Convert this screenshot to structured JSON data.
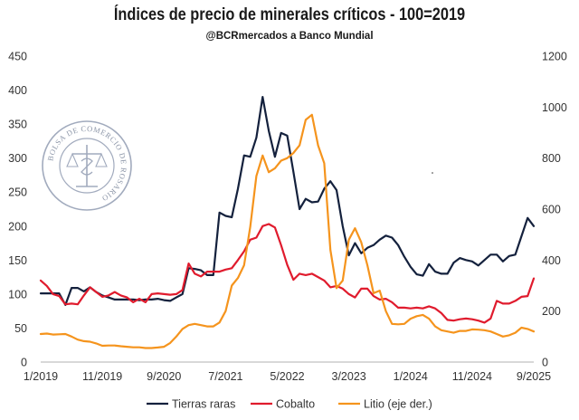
{
  "chart_data": {
    "type": "line",
    "title": "Índices de precio de minerales críticos - 100=2019",
    "subtitle": "@BCRmercados a Banco Mundial",
    "x_start": "2019-01",
    "x_end": "2025-09",
    "x_ticks": [
      "1/2019",
      "11/2019",
      "9/2020",
      "7/2021",
      "5/2022",
      "3/2023",
      "1/2024",
      "11/2024",
      "9/2025"
    ],
    "y_left": {
      "ticks": [
        0,
        50,
        100,
        150,
        200,
        250,
        300,
        350,
        400,
        450
      ],
      "range": [
        0,
        450
      ]
    },
    "y_right": {
      "ticks": [
        0,
        200,
        400,
        600,
        800,
        1000,
        1200
      ],
      "range": [
        0,
        1200
      ]
    },
    "series": [
      {
        "name": "Tierras raras",
        "axis": "left",
        "color": "#14213d",
        "points": [
          [
            "2019-01",
            101
          ],
          [
            "2019-02",
            101
          ],
          [
            "2019-03",
            101
          ],
          [
            "2019-04",
            101
          ],
          [
            "2019-05",
            84
          ],
          [
            "2019-06",
            109
          ],
          [
            "2019-07",
            109
          ],
          [
            "2019-08",
            104
          ],
          [
            "2019-09",
            110
          ],
          [
            "2019-10",
            103
          ],
          [
            "2019-11",
            98
          ],
          [
            "2019-12",
            95
          ],
          [
            "2020-01",
            92
          ],
          [
            "2020-02",
            92
          ],
          [
            "2020-03",
            92
          ],
          [
            "2020-04",
            92
          ],
          [
            "2020-05",
            91
          ],
          [
            "2020-06",
            92
          ],
          [
            "2020-07",
            92
          ],
          [
            "2020-08",
            93
          ],
          [
            "2020-09",
            91
          ],
          [
            "2020-10",
            90
          ],
          [
            "2020-11",
            95
          ],
          [
            "2020-12",
            100
          ],
          [
            "2021-01",
            138
          ],
          [
            "2021-02",
            137
          ],
          [
            "2021-03",
            135
          ],
          [
            "2021-04",
            128
          ],
          [
            "2021-05",
            128
          ],
          [
            "2021-06",
            220
          ],
          [
            "2021-07",
            215
          ],
          [
            "2021-08",
            213
          ],
          [
            "2021-09",
            255
          ],
          [
            "2021-10",
            304
          ],
          [
            "2021-11",
            302
          ],
          [
            "2021-12",
            330
          ],
          [
            "2022-01",
            390
          ],
          [
            "2022-02",
            340
          ],
          [
            "2022-03",
            302
          ],
          [
            "2022-04",
            337
          ],
          [
            "2022-05",
            333
          ],
          [
            "2022-06",
            280
          ],
          [
            "2022-07",
            225
          ],
          [
            "2022-08",
            240
          ],
          [
            "2022-09",
            235
          ],
          [
            "2022-10",
            236
          ],
          [
            "2022-11",
            255
          ],
          [
            "2022-12",
            266
          ],
          [
            "2023-01",
            253
          ],
          [
            "2023-02",
            200
          ],
          [
            "2023-03",
            157
          ],
          [
            "2023-04",
            175
          ],
          [
            "2023-05",
            160
          ],
          [
            "2023-06",
            168
          ],
          [
            "2023-07",
            172
          ],
          [
            "2023-08",
            180
          ],
          [
            "2023-09",
            186
          ],
          [
            "2023-10",
            183
          ],
          [
            "2023-11",
            172
          ],
          [
            "2023-12",
            155
          ],
          [
            "2024-01",
            140
          ],
          [
            "2024-02",
            129
          ],
          [
            "2024-03",
            127
          ],
          [
            "2024-04",
            144
          ],
          [
            "2024-05",
            133
          ],
          [
            "2024-06",
            130
          ],
          [
            "2024-07",
            130
          ],
          [
            "2024-08",
            146
          ],
          [
            "2024-09",
            153
          ],
          [
            "2024-10",
            150
          ],
          [
            "2024-11",
            148
          ],
          [
            "2024-12",
            142
          ],
          [
            "2025-01",
            150
          ],
          [
            "2025-02",
            158
          ],
          [
            "2025-03",
            158
          ],
          [
            "2025-04",
            148
          ],
          [
            "2025-05",
            156
          ],
          [
            "2025-06",
            158
          ],
          [
            "2025-07",
            185
          ],
          [
            "2025-08",
            212
          ],
          [
            "2025-09",
            200
          ]
        ]
      },
      {
        "name": "Cobalto",
        "axis": "left",
        "color": "#e01b2d",
        "points": [
          [
            "2019-01",
            120
          ],
          [
            "2019-02",
            112
          ],
          [
            "2019-03",
            100
          ],
          [
            "2019-04",
            97
          ],
          [
            "2019-05",
            85
          ],
          [
            "2019-06",
            86
          ],
          [
            "2019-07",
            85
          ],
          [
            "2019-08",
            98
          ],
          [
            "2019-09",
            110
          ],
          [
            "2019-10",
            103
          ],
          [
            "2019-11",
            96
          ],
          [
            "2019-12",
            98
          ],
          [
            "2020-01",
            103
          ],
          [
            "2020-02",
            98
          ],
          [
            "2020-03",
            95
          ],
          [
            "2020-04",
            88
          ],
          [
            "2020-05",
            93
          ],
          [
            "2020-06",
            88
          ],
          [
            "2020-07",
            100
          ],
          [
            "2020-08",
            101
          ],
          [
            "2020-09",
            100
          ],
          [
            "2020-10",
            99
          ],
          [
            "2020-11",
            100
          ],
          [
            "2020-12",
            106
          ],
          [
            "2021-01",
            145
          ],
          [
            "2021-02",
            130
          ],
          [
            "2021-03",
            126
          ],
          [
            "2021-04",
            133
          ],
          [
            "2021-05",
            133
          ],
          [
            "2021-06",
            133
          ],
          [
            "2021-07",
            136
          ],
          [
            "2021-08",
            138
          ],
          [
            "2021-09",
            150
          ],
          [
            "2021-10",
            163
          ],
          [
            "2021-11",
            180
          ],
          [
            "2021-12",
            183
          ],
          [
            "2022-01",
            200
          ],
          [
            "2022-02",
            203
          ],
          [
            "2022-03",
            198
          ],
          [
            "2022-04",
            172
          ],
          [
            "2022-05",
            143
          ],
          [
            "2022-06",
            121
          ],
          [
            "2022-07",
            130
          ],
          [
            "2022-08",
            128
          ],
          [
            "2022-09",
            130
          ],
          [
            "2022-10",
            125
          ],
          [
            "2022-11",
            120
          ],
          [
            "2022-12",
            110
          ],
          [
            "2023-01",
            112
          ],
          [
            "2023-02",
            108
          ],
          [
            "2023-03",
            100
          ],
          [
            "2023-04",
            95
          ],
          [
            "2023-05",
            108
          ],
          [
            "2023-06",
            108
          ],
          [
            "2023-07",
            97
          ],
          [
            "2023-08",
            92
          ],
          [
            "2023-09",
            93
          ],
          [
            "2023-10",
            88
          ],
          [
            "2023-11",
            80
          ],
          [
            "2023-12",
            80
          ],
          [
            "2024-01",
            79
          ],
          [
            "2024-02",
            80
          ],
          [
            "2024-03",
            79
          ],
          [
            "2024-04",
            82
          ],
          [
            "2024-05",
            79
          ],
          [
            "2024-06",
            72
          ],
          [
            "2024-07",
            62
          ],
          [
            "2024-08",
            61
          ],
          [
            "2024-09",
            63
          ],
          [
            "2024-10",
            64
          ],
          [
            "2024-11",
            63
          ],
          [
            "2024-12",
            61
          ],
          [
            "2025-01",
            58
          ],
          [
            "2025-02",
            64
          ],
          [
            "2025-03",
            90
          ],
          [
            "2025-04",
            86
          ],
          [
            "2025-05",
            86
          ],
          [
            "2025-06",
            90
          ],
          [
            "2025-07",
            96
          ],
          [
            "2025-08",
            97
          ],
          [
            "2025-09",
            123
          ]
        ]
      },
      {
        "name": "Litio (eje der.)",
        "axis": "right",
        "color": "#f5941d",
        "points": [
          [
            "2019-01",
            110
          ],
          [
            "2019-02",
            112
          ],
          [
            "2019-03",
            108
          ],
          [
            "2019-04",
            109
          ],
          [
            "2019-05",
            110
          ],
          [
            "2019-06",
            100
          ],
          [
            "2019-07",
            88
          ],
          [
            "2019-08",
            82
          ],
          [
            "2019-09",
            80
          ],
          [
            "2019-10",
            73
          ],
          [
            "2019-11",
            64
          ],
          [
            "2019-12",
            65
          ],
          [
            "2020-01",
            65
          ],
          [
            "2020-02",
            62
          ],
          [
            "2020-03",
            60
          ],
          [
            "2020-04",
            58
          ],
          [
            "2020-05",
            58
          ],
          [
            "2020-06",
            55
          ],
          [
            "2020-07",
            55
          ],
          [
            "2020-08",
            57
          ],
          [
            "2020-09",
            60
          ],
          [
            "2020-10",
            75
          ],
          [
            "2020-11",
            100
          ],
          [
            "2020-12",
            130
          ],
          [
            "2021-01",
            145
          ],
          [
            "2021-02",
            150
          ],
          [
            "2021-03",
            145
          ],
          [
            "2021-04",
            140
          ],
          [
            "2021-05",
            140
          ],
          [
            "2021-06",
            155
          ],
          [
            "2021-07",
            200
          ],
          [
            "2021-08",
            300
          ],
          [
            "2021-09",
            330
          ],
          [
            "2021-10",
            380
          ],
          [
            "2021-11",
            530
          ],
          [
            "2021-12",
            730
          ],
          [
            "2022-01",
            810
          ],
          [
            "2022-02",
            745
          ],
          [
            "2022-03",
            760
          ],
          [
            "2022-04",
            790
          ],
          [
            "2022-05",
            800
          ],
          [
            "2022-06",
            820
          ],
          [
            "2022-07",
            850
          ],
          [
            "2022-08",
            950
          ],
          [
            "2022-09",
            970
          ],
          [
            "2022-10",
            850
          ],
          [
            "2022-11",
            780
          ],
          [
            "2022-12",
            440
          ],
          [
            "2023-01",
            290
          ],
          [
            "2023-02",
            320
          ],
          [
            "2023-03",
            480
          ],
          [
            "2023-04",
            525
          ],
          [
            "2023-05",
            470
          ],
          [
            "2023-06",
            380
          ],
          [
            "2023-07",
            270
          ],
          [
            "2023-08",
            280
          ],
          [
            "2023-09",
            200
          ],
          [
            "2023-10",
            150
          ],
          [
            "2023-11",
            148
          ],
          [
            "2023-12",
            150
          ],
          [
            "2024-01",
            170
          ],
          [
            "2024-02",
            180
          ],
          [
            "2024-03",
            185
          ],
          [
            "2024-04",
            170
          ],
          [
            "2024-05",
            140
          ],
          [
            "2024-06",
            125
          ],
          [
            "2024-07",
            120
          ],
          [
            "2024-08",
            115
          ],
          [
            "2024-09",
            122
          ],
          [
            "2024-10",
            122
          ],
          [
            "2024-11",
            128
          ],
          [
            "2024-12",
            127
          ],
          [
            "2025-01",
            125
          ],
          [
            "2025-02",
            120
          ],
          [
            "2025-03",
            110
          ],
          [
            "2025-04",
            100
          ],
          [
            "2025-05",
            105
          ],
          [
            "2025-06",
            115
          ],
          [
            "2025-07",
            135
          ],
          [
            "2025-08",
            130
          ],
          [
            "2025-09",
            120
          ]
        ]
      }
    ],
    "grid": false,
    "legend_position": "bottom",
    "watermark": "BOLSA DE COMERCIO DE ROSARIO"
  }
}
